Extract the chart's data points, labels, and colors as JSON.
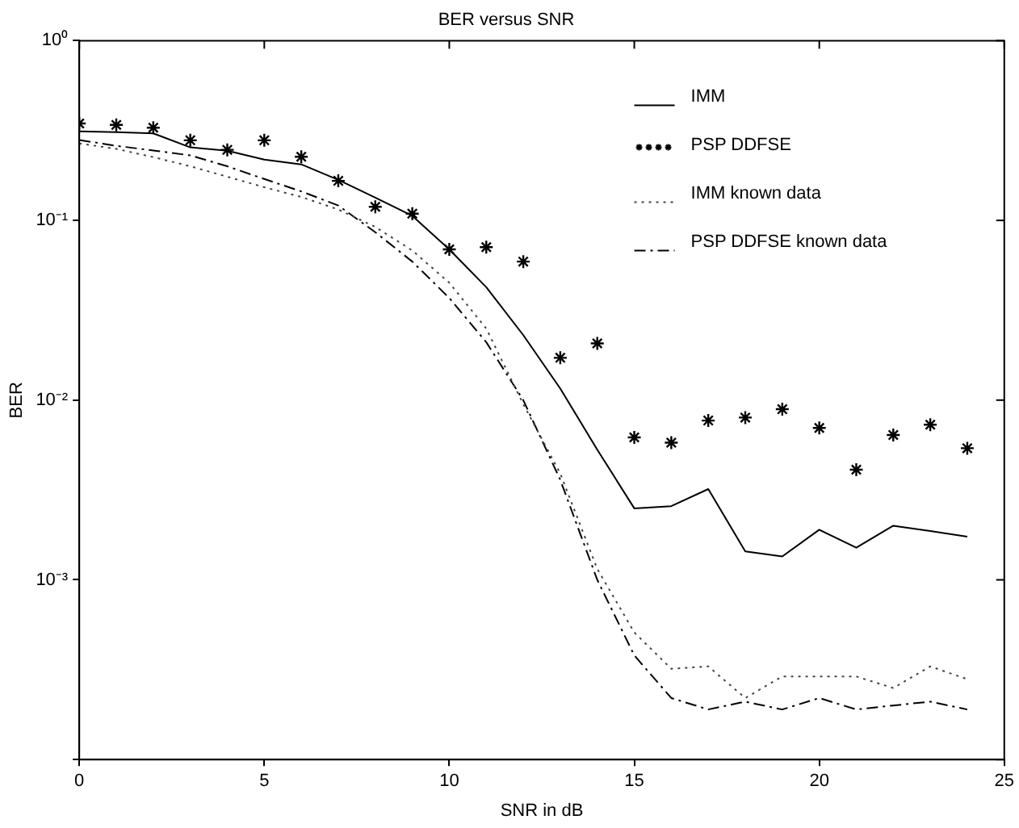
{
  "chart_data": {
    "type": "line",
    "title": "BER versus SNR",
    "xlabel": "SNR in dB",
    "ylabel": "BER",
    "log": "y",
    "grid": false,
    "legend": "top right",
    "x": [
      0,
      1,
      2,
      3,
      4,
      5,
      6,
      7,
      8,
      9,
      10,
      11,
      12,
      13,
      14,
      15,
      16,
      17,
      18,
      19,
      20,
      21,
      22,
      23,
      24
    ],
    "xlim": [
      0,
      25
    ],
    "xticks": [
      0,
      5,
      10,
      15,
      20,
      25
    ],
    "ylim": [
      0.0001,
      1
    ],
    "yticks": [
      {
        "value": 1,
        "label": "10⁰"
      },
      {
        "value": 0.1,
        "label": "10⁻¹"
      },
      {
        "value": 0.01,
        "label": "10⁻²"
      },
      {
        "value": 0.001,
        "label": "10⁻³"
      },
      {
        "value": 0.0001,
        "label": null
      }
    ],
    "series": [
      {
        "name": "IMM",
        "color": "#000000",
        "line_style": "solid",
        "marker": "none",
        "values": [
          0.313,
          0.31,
          0.305,
          0.255,
          0.244,
          0.218,
          0.205,
          0.168,
          0.134,
          0.106,
          0.069,
          0.0425,
          0.023,
          0.0116,
          0.0053,
          0.0025,
          0.00257,
          0.0032,
          0.00144,
          0.00135,
          0.0019,
          0.00151,
          0.002,
          0.00187,
          0.00174
        ]
      },
      {
        "name": "PSP DDFSE",
        "type": "scatter",
        "color": "#000000",
        "marker": "cross",
        "values": [
          0.346,
          0.34,
          0.328,
          0.279,
          0.247,
          0.279,
          0.226,
          0.166,
          0.119,
          0.109,
          0.069,
          0.071,
          0.059,
          0.0172,
          0.0207,
          0.0062,
          0.0058,
          0.0077,
          0.008,
          0.0089,
          0.007,
          0.0041,
          0.0064,
          0.0073,
          0.0054
        ]
      },
      {
        "name": "IMM known data",
        "color": "#444444",
        "line_style": "dotted",
        "marker": "none",
        "values": [
          0.268,
          0.25,
          0.225,
          0.2,
          0.175,
          0.153,
          0.135,
          0.115,
          0.092,
          0.068,
          0.045,
          0.025,
          0.0095,
          0.0039,
          0.00115,
          0.00051,
          0.00032,
          0.00033,
          0.00022,
          0.00029,
          0.00029,
          0.00029,
          0.00025,
          0.00033,
          0.00028
        ]
      },
      {
        "name": "PSP DDFSE known data",
        "color": "#000000",
        "line_style": "dashdot",
        "marker": "none",
        "values": [
          0.28,
          0.26,
          0.245,
          0.23,
          0.2,
          0.17,
          0.145,
          0.121,
          0.086,
          0.059,
          0.037,
          0.021,
          0.01,
          0.0036,
          0.001,
          0.00038,
          0.00022,
          0.00019,
          0.00021,
          0.00019,
          0.00022,
          0.00019,
          0.0002,
          0.00021,
          0.00019
        ]
      }
    ]
  }
}
